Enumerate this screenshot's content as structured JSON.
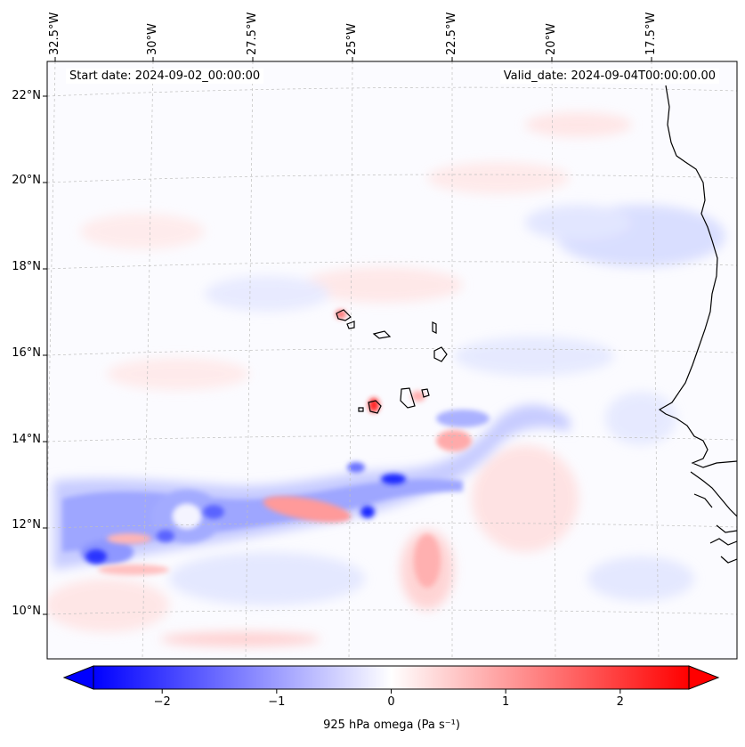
{
  "lon_labels": [
    "32.5°W",
    "30°W",
    "27.5°W",
    "25°W",
    "22.5°W",
    "20°W",
    "17.5°W"
  ],
  "lat_labels": [
    "22°N",
    "20°N",
    "18°N",
    "16°N",
    "14°N",
    "12°N",
    "10°N"
  ],
  "start_date": "Start date: 2024-09-02_00:00:00",
  "valid_date": "Valid_date: 2024-09-04T00:00:00.00",
  "colorbar": {
    "label": "925 hPa omega (Pa s⁻¹)",
    "tick_labels": [
      "−2",
      "−1",
      "0",
      "1",
      "2"
    ],
    "tick_values": [
      -2,
      -1,
      0,
      1,
      2
    ],
    "range": [
      -2.6,
      2.6
    ],
    "colormap": "bwr",
    "neg_color": "#0000ff",
    "pos_color": "#ff0000",
    "mid_color": "#ffffff",
    "extend": "both"
  },
  "map": {
    "variable": "925 hPa omega",
    "projection": "lambert-conformal",
    "lon_range": [
      -32.7,
      -15.8
    ],
    "lat_range": [
      8.9,
      22.7
    ],
    "gridlines": true,
    "coastlines": true
  }
}
